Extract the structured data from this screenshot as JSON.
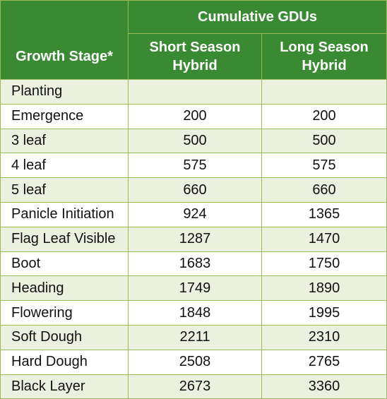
{
  "header": {
    "group_label": "Cumulative GDUs",
    "stage_label": "Growth Stage*",
    "short_label_line1": "Short Season",
    "short_label_line2": "Hybrid",
    "long_label_line1": "Long Season",
    "long_label_line2": "Hybrid"
  },
  "rows": [
    {
      "stage": "Planting",
      "short": "",
      "long": ""
    },
    {
      "stage": "Emergence",
      "short": "200",
      "long": "200"
    },
    {
      "stage": "3 leaf",
      "short": "500",
      "long": "500"
    },
    {
      "stage": "4 leaf",
      "short": "575",
      "long": "575"
    },
    {
      "stage": "5 leaf",
      "short": "660",
      "long": "660"
    },
    {
      "stage": "Panicle Initiation",
      "short": "924",
      "long": "1365"
    },
    {
      "stage": "Flag Leaf Visible",
      "short": "1287",
      "long": "1470"
    },
    {
      "stage": "Boot",
      "short": "1683",
      "long": "1750"
    },
    {
      "stage": "Heading",
      "short": "1749",
      "long": "1890"
    },
    {
      "stage": "Flowering",
      "short": "1848",
      "long": "1995"
    },
    {
      "stage": "Soft Dough",
      "short": "2211",
      "long": "2310"
    },
    {
      "stage": "Hard Dough",
      "short": "2508",
      "long": "2765"
    },
    {
      "stage": "Black Layer",
      "short": "2673",
      "long": "3360"
    }
  ],
  "colors": {
    "header_bg": "#3a8a33",
    "row_tint": "#ebf1de",
    "border": "#9bbb59"
  }
}
